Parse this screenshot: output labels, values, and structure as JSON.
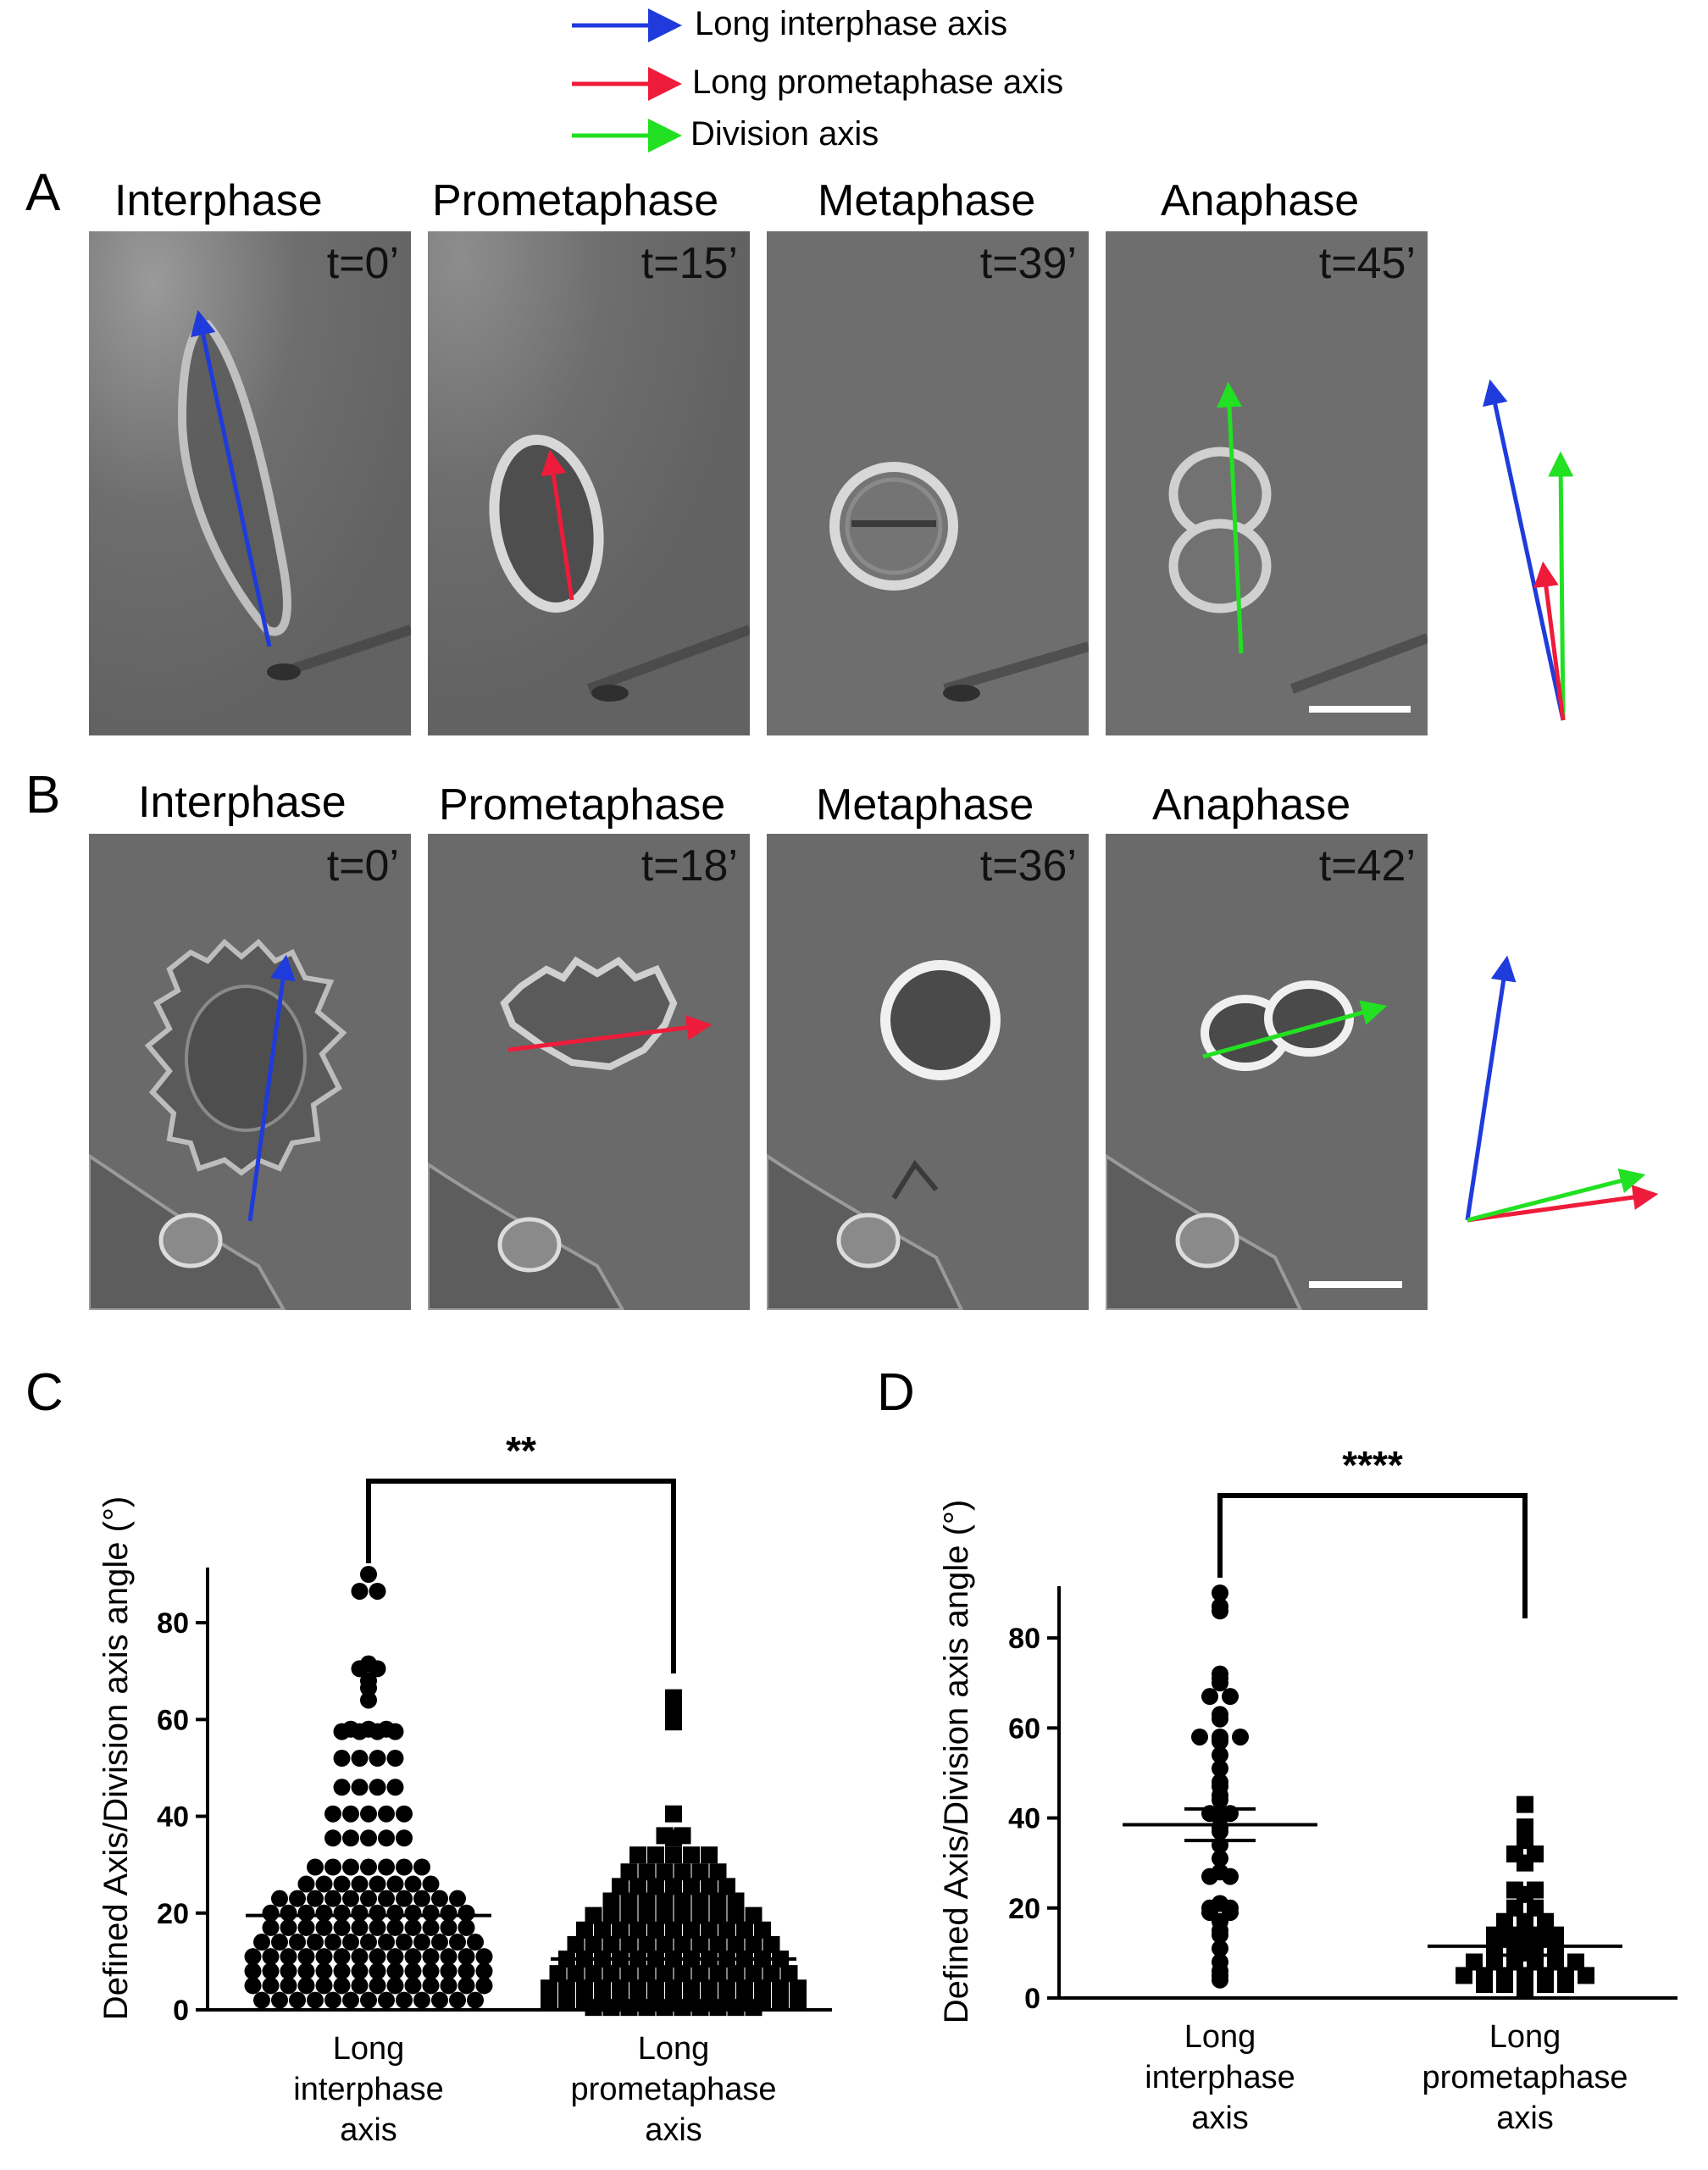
{
  "legend": [
    {
      "label": "Long interphase axis",
      "color": "#1f3bdc"
    },
    {
      "label": "Long prometaphase axis",
      "color": "#ee1c3a"
    },
    {
      "label": "Division axis",
      "color": "#22e022"
    }
  ],
  "panel_A": {
    "letter": "A",
    "frames": [
      {
        "phase": "Interphase",
        "time": "t=0’",
        "arrow": "Long interphase axis"
      },
      {
        "phase": "Prometaphase",
        "time": "t=15’",
        "arrow": "Long prometaphase axis"
      },
      {
        "phase": "Metaphase",
        "time": "t=39’",
        "arrow": ""
      },
      {
        "phase": "Anaphase",
        "time": "t=45’",
        "arrow": "Division axis"
      }
    ]
  },
  "panel_B": {
    "letter": "B",
    "frames": [
      {
        "phase": "Interphase",
        "time": "t=0’",
        "arrow": "Long interphase axis"
      },
      {
        "phase": "Prometaphase",
        "time": "t=18’",
        "arrow": "Long prometaphase axis"
      },
      {
        "phase": "Metaphase",
        "time": "t=36’",
        "arrow": ""
      },
      {
        "phase": "Anaphase",
        "time": "t=42’",
        "arrow": "Division axis"
      }
    ]
  },
  "chart_data": [
    {
      "panel": "C",
      "type": "scatter",
      "ylabel": "Defined Axis/Division axis angle (°)",
      "ylim": [
        0,
        90
      ],
      "yticks": [
        0,
        20,
        40,
        60,
        80
      ],
      "categories": [
        "Long\ninterphase\naxis",
        "Long\nprometaphase\naxis"
      ],
      "significance": "**",
      "series": [
        {
          "marker": "circle",
          "mean": 19.5,
          "values": [
            90,
            86.5,
            86.5,
            71.5,
            70.5,
            70.5,
            68,
            66.5,
            64,
            58,
            58,
            58,
            57.5,
            57.5,
            57.5,
            57.5,
            52,
            52,
            52,
            52,
            46,
            46,
            46,
            46,
            40.5,
            40.5,
            40.5,
            40.5,
            40.5,
            35.5,
            35.5,
            35.5,
            35.5,
            35.5,
            29.5,
            29.5,
            29.5,
            29.5,
            29.5,
            29.5,
            29.5,
            26,
            26,
            26,
            26,
            26,
            26,
            26,
            26,
            23,
            23,
            23,
            23,
            23,
            23,
            23,
            23,
            23,
            23,
            23,
            20,
            20,
            20,
            20,
            20,
            20,
            20,
            20,
            20,
            20,
            20,
            20,
            17,
            17,
            17,
            17,
            17,
            17,
            17,
            17,
            17,
            17,
            17,
            17,
            14,
            14,
            14,
            14,
            14,
            14,
            14,
            14,
            14,
            14,
            14,
            14,
            14,
            11,
            11,
            11,
            11,
            11,
            11,
            11,
            11,
            11,
            11,
            11,
            11,
            11,
            11,
            8,
            8,
            8,
            8,
            8,
            8,
            8,
            8,
            8,
            8,
            8,
            8,
            8,
            8,
            5,
            5,
            5,
            5,
            5,
            5,
            5,
            5,
            5,
            5,
            5,
            5,
            5,
            5,
            2,
            2,
            2,
            2,
            2,
            2,
            2,
            2,
            2,
            2,
            2,
            2,
            2
          ]
        },
        {
          "marker": "square",
          "mean": 10.5,
          "values": [
            64.5,
            62.5,
            59.5,
            40.5,
            36,
            36,
            35.5,
            32,
            32,
            32,
            32,
            32,
            28.5,
            28.5,
            28.5,
            28.5,
            28.5,
            28.5,
            25.5,
            25.5,
            25.5,
            25.5,
            25.5,
            25.5,
            25.5,
            22.5,
            22.5,
            22.5,
            22.5,
            22.5,
            22.5,
            22.5,
            22.5,
            19.5,
            19.5,
            19.5,
            19.5,
            19.5,
            19.5,
            19.5,
            19.5,
            19.5,
            19.5,
            16.5,
            16.5,
            16.5,
            16.5,
            16.5,
            16.5,
            16.5,
            16.5,
            16.5,
            16.5,
            16.5,
            13.5,
            13.5,
            13.5,
            13.5,
            13.5,
            13.5,
            13.5,
            13.5,
            13.5,
            13.5,
            13.5,
            13.5,
            10.5,
            10.5,
            10.5,
            10.5,
            10.5,
            10.5,
            10.5,
            10.5,
            10.5,
            10.5,
            10.5,
            10.5,
            10.5,
            7.5,
            7.5,
            7.5,
            7.5,
            7.5,
            7.5,
            7.5,
            7.5,
            7.5,
            7.5,
            7.5,
            7.5,
            7.5,
            7.5,
            4.5,
            4.5,
            4.5,
            4.5,
            4.5,
            4.5,
            4.5,
            4.5,
            4.5,
            4.5,
            4.5,
            4.5,
            4.5,
            4.5,
            4.5,
            1.5,
            1.5,
            1.5,
            1.5,
            1.5,
            1.5,
            1.5,
            1.5,
            1.5,
            1.5,
            1.5,
            1.5,
            1.5,
            1.5,
            1.5,
            0.5,
            0.5,
            0.5,
            0.5,
            0.5,
            0.5,
            0.5,
            0.5,
            0.5,
            0.5
          ]
        }
      ]
    },
    {
      "panel": "D",
      "type": "scatter",
      "ylabel": "Defined Axis/Division axis angle (°)",
      "ylim": [
        0,
        90
      ],
      "yticks": [
        0,
        20,
        40,
        60,
        80
      ],
      "categories": [
        "Long\ninterphase\naxis",
        "Long\nprometaphase\naxis"
      ],
      "significance": "****",
      "series": [
        {
          "marker": "circle",
          "mean": 38.5,
          "sem_low": 35,
          "sem_high": 42,
          "values": [
            90,
            87,
            86,
            72,
            71,
            70,
            67,
            67,
            63,
            62,
            58,
            58,
            58,
            57.5,
            57,
            54,
            51,
            48,
            47,
            45,
            44,
            41,
            41,
            40.5,
            40,
            38,
            37,
            34,
            31,
            28,
            27,
            27,
            21,
            20,
            20,
            19,
            19,
            17,
            15,
            14,
            11,
            8,
            6,
            5,
            4
          ]
        },
        {
          "marker": "square",
          "mean": 11.5,
          "sem_low": 9.5,
          "sem_high": 13.5,
          "values": [
            43,
            38,
            35,
            32,
            32,
            30,
            24,
            24,
            23,
            20,
            20,
            17,
            17,
            17,
            14,
            14,
            14,
            14,
            13.5,
            13.5,
            13.5,
            11,
            11,
            11,
            11,
            10,
            8,
            8,
            8,
            8,
            8,
            8,
            5,
            5,
            5,
            5,
            5,
            5,
            5,
            3,
            3,
            3,
            3,
            3,
            2,
            1.5
          ]
        }
      ]
    }
  ],
  "chart_C_letter": "C",
  "chart_D_letter": "D"
}
